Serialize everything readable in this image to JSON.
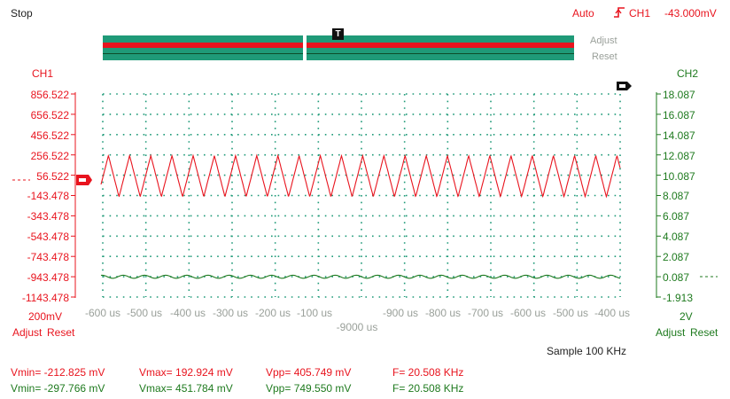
{
  "header": {
    "run_state": "Stop",
    "trigger_mode": "Auto",
    "trigger_channel": "CH1",
    "trigger_level": "-43.000mV"
  },
  "overview": {
    "adjust_label": "Adjust",
    "reset_label": "Reset"
  },
  "ch1": {
    "name": "CH1",
    "scale": "200mV",
    "adjust_label": "Adjust",
    "reset_label": "Reset",
    "ticks": [
      "856.522",
      "656.522",
      "456.522",
      "256.522",
      "56.522",
      "-143.478",
      "-343.478",
      "-543.478",
      "-743.478",
      "-943.478",
      "-1143.478"
    ],
    "color": "#e8141e"
  },
  "ch2": {
    "name": "CH2",
    "scale": "2V",
    "adjust_label": "Adjust",
    "reset_label": "Reset",
    "ticks": [
      "18.087",
      "16.087",
      "14.087",
      "12.087",
      "10.087",
      "8.087",
      "6.087",
      "4.087",
      "2.087",
      "0.087",
      "-1.913"
    ],
    "color": "#1e7a1e"
  },
  "time_axis": {
    "ticks": [
      "-600 us",
      "-500 us",
      "-400 us",
      "-300 us",
      "-200 us",
      "-100 us",
      "",
      "-900 us",
      "-800 us",
      "-700 us",
      "-600 us",
      "-500 us",
      "-400 us"
    ],
    "offset_label": "-9000 us"
  },
  "sample_rate": "Sample 100 KHz",
  "measurements": {
    "ch1": {
      "vmin": "Vmin= -212.825 mV",
      "vmax": "Vmax= 192.924 mV",
      "vpp": "Vpp= 405.749 mV",
      "freq": "F= 20.508 KHz"
    },
    "ch2": {
      "vmin": "Vmin= -297.766 mV",
      "vmax": "Vmax= 451.784 mV",
      "vpp": "Vpp= 749.550 mV",
      "freq": "F= 20.508 KHz"
    }
  },
  "chart_data": {
    "type": "line",
    "x_unit": "us",
    "series": [
      {
        "name": "CH1",
        "frequency_khz": 20.508,
        "vmin_mv": -212.825,
        "vmax_mv": 192.924,
        "waveform": "triangle"
      },
      {
        "name": "CH2",
        "frequency_khz": 20.508,
        "vmin_mv": -297.766,
        "vmax_mv": 451.784,
        "waveform": "sine"
      }
    ],
    "ylim_ch1_mv": [
      -1143.478,
      856.522
    ],
    "ylim_ch2_v": [
      -1.913,
      18.087
    ],
    "grid": true
  }
}
